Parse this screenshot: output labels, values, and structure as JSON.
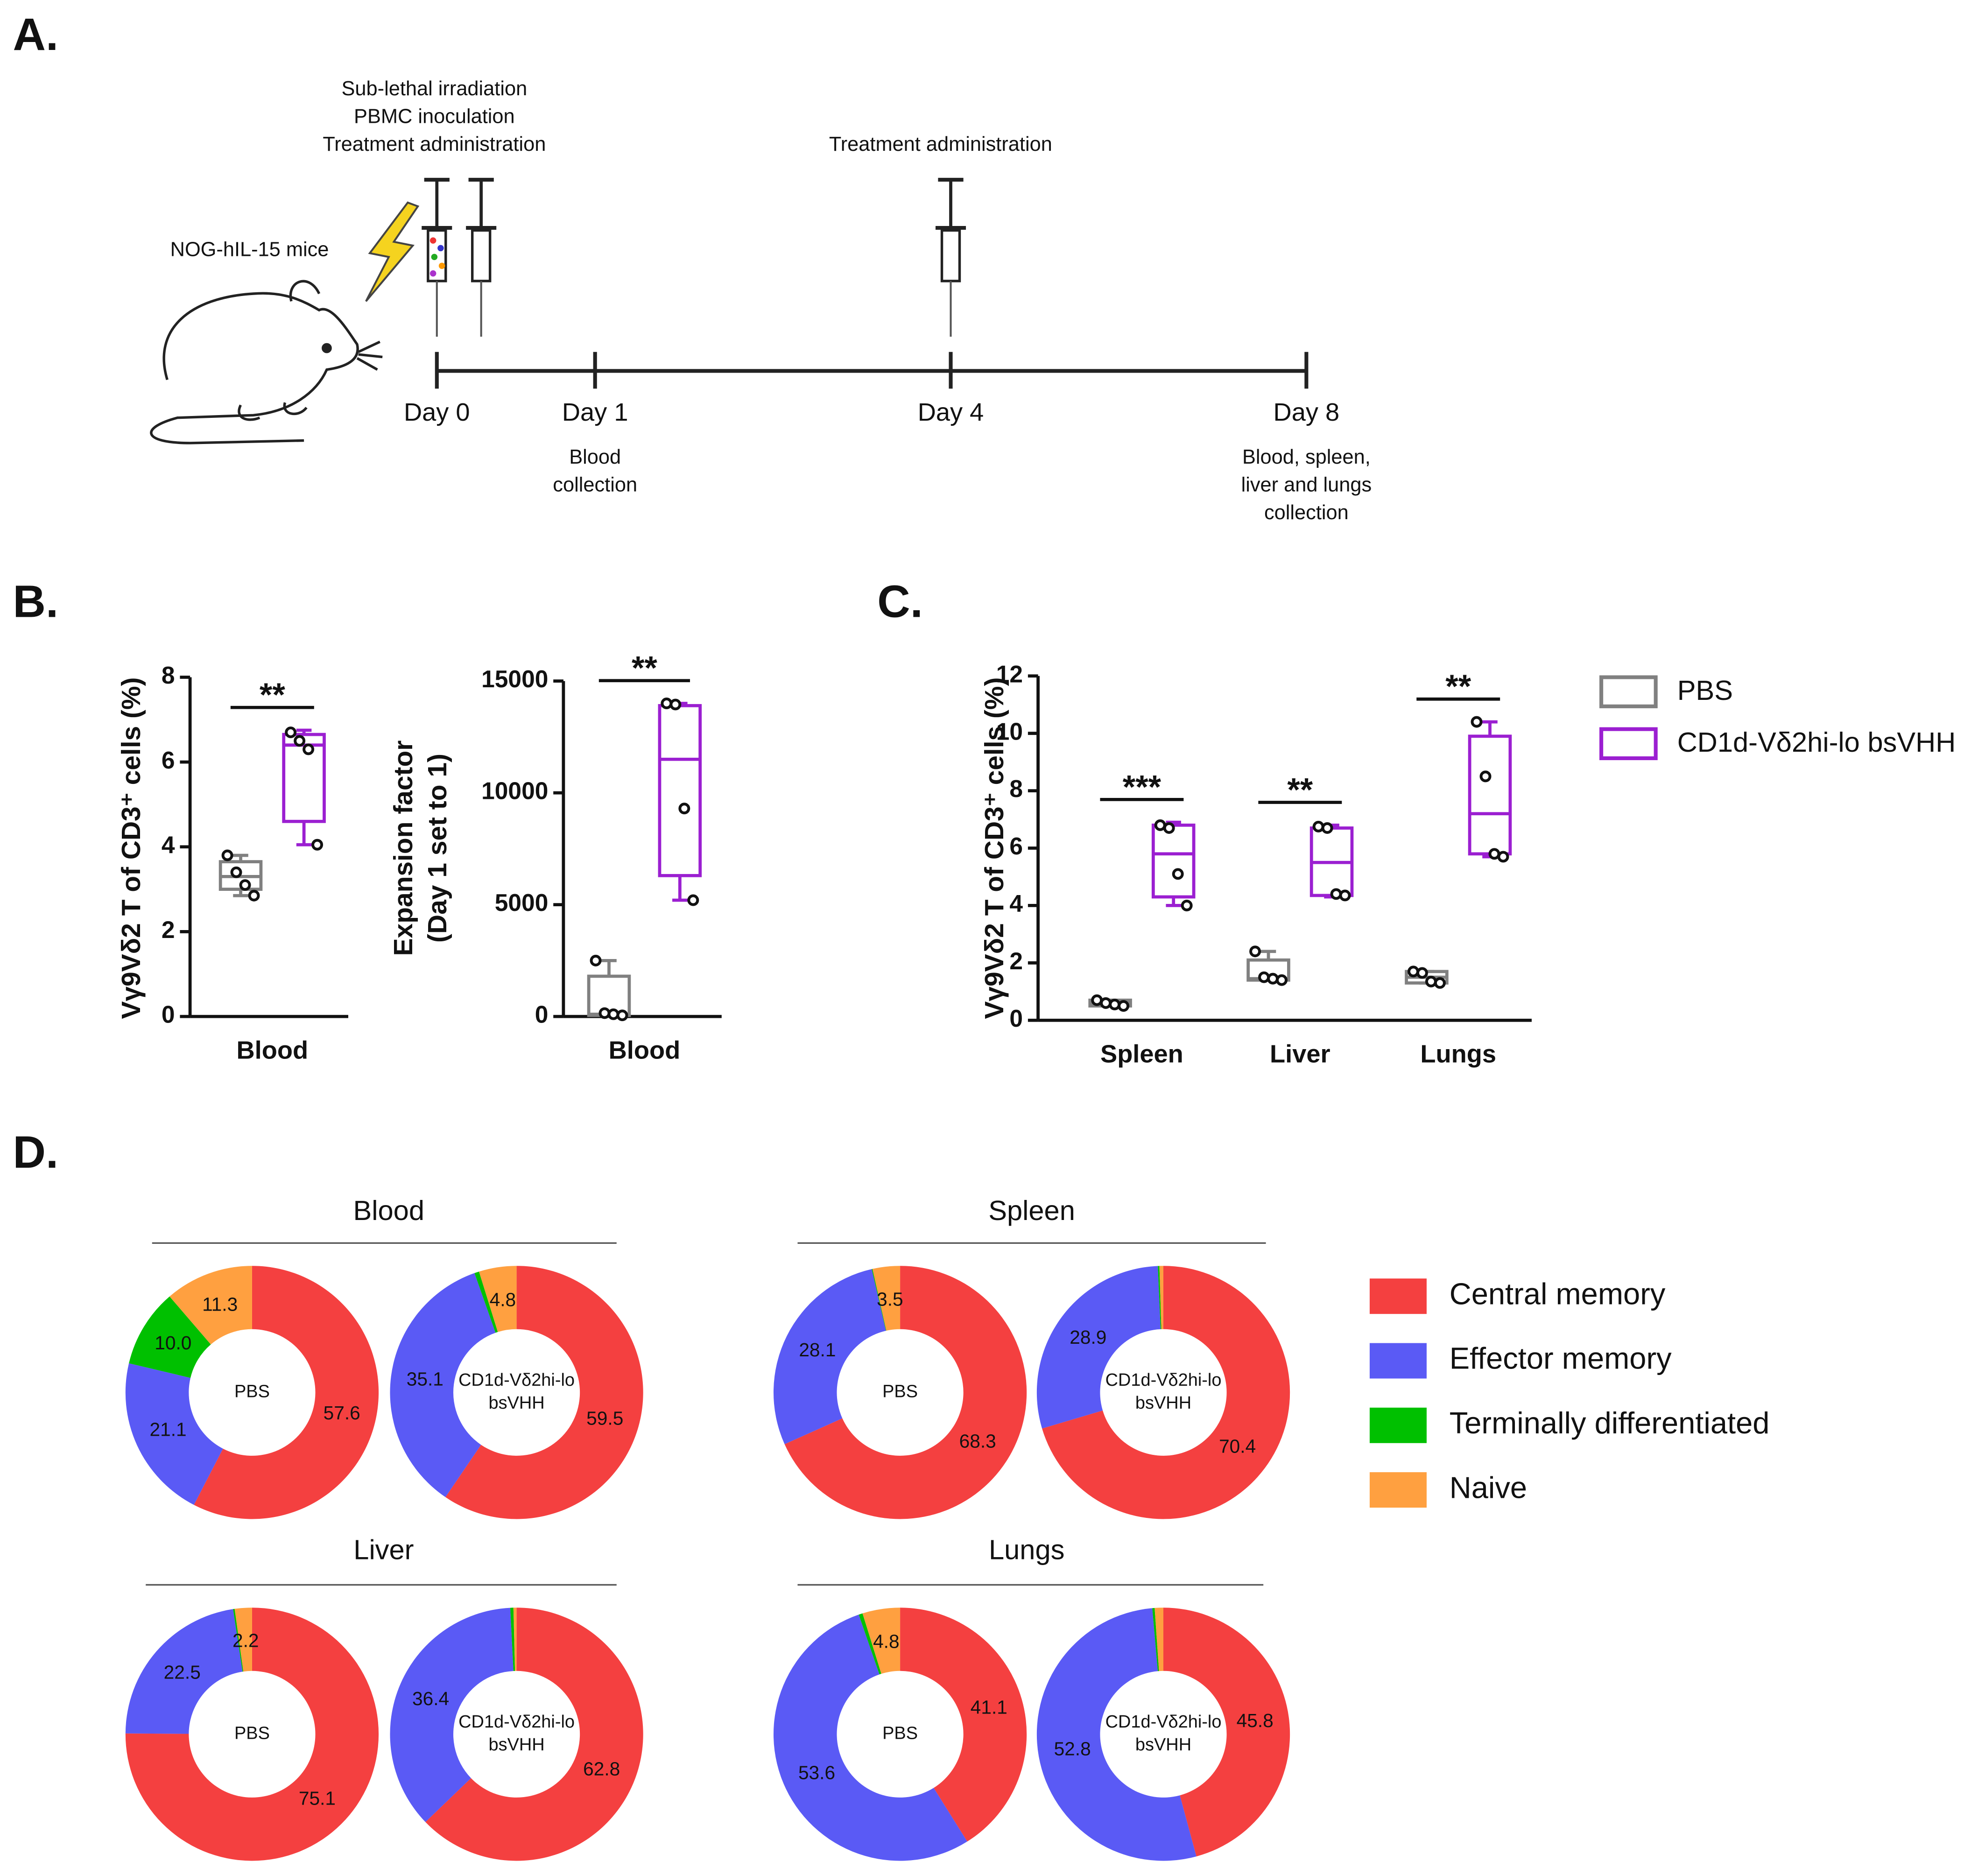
{
  "panels": [
    "A.",
    "B.",
    "C.",
    "D."
  ],
  "timeline": {
    "subject": "NOG-hIL-15 mice",
    "days": [
      {
        "label": "Day 0",
        "above": [
          "Sub-lethal irradiation",
          "PBMC inoculation",
          "Treatment administration"
        ]
      },
      {
        "label": "Day 1",
        "below": [
          "Blood",
          "collection"
        ]
      },
      {
        "label": "Day 4",
        "above": [
          "Treatment  administration"
        ]
      },
      {
        "label": "Day 8",
        "below": [
          "Blood, spleen,",
          "liver and lungs",
          "collection"
        ]
      }
    ]
  },
  "chart_data": [
    {
      "type": "box",
      "ylabel": "Vγ9Vδ2 T of CD3⁺ cells (%)",
      "categories": [
        "Blood"
      ],
      "ylim": [
        0,
        8
      ],
      "yticks": [
        0,
        2,
        4,
        6,
        8
      ],
      "significance": [
        "**"
      ],
      "series": [
        {
          "color": "#808080",
          "boxes": [
            {
              "min": 2.85,
              "q1": 3.0,
              "median": 3.3,
              "q3": 3.65,
              "max": 3.8,
              "points": [
                3.8,
                3.4,
                3.1,
                2.85
              ]
            }
          ]
        },
        {
          "color": "#9b1fd1",
          "boxes": [
            {
              "min": 4.05,
              "q1": 4.6,
              "median": 6.4,
              "q3": 6.65,
              "max": 6.75,
              "points": [
                6.7,
                6.5,
                6.3,
                4.05
              ]
            }
          ]
        }
      ]
    },
    {
      "type": "box",
      "ylabel": [
        "Expansion factor",
        "(Day 1 set to 1)"
      ],
      "categories": [
        "Blood"
      ],
      "ylim": [
        0,
        15000
      ],
      "yticks": [
        0,
        5000,
        10000,
        15000
      ],
      "significance": [
        "**"
      ],
      "series": [
        {
          "color": "#808080",
          "boxes": [
            {
              "min": 0,
              "q1": 50,
              "median": 100,
              "q3": 1800,
              "max": 2500,
              "points": [
                2500,
                150,
                100,
                50
              ]
            }
          ]
        },
        {
          "color": "#9b1fd1",
          "boxes": [
            {
              "min": 5200,
              "q1": 6300,
              "median": 11500,
              "q3": 13900,
              "max": 14000,
              "points": [
                14000,
                13950,
                9300,
                5200
              ]
            }
          ]
        }
      ]
    },
    {
      "type": "box",
      "ylabel": "Vγ9Vδ2 T of CD3⁺ cells (%)",
      "categories": [
        "Spleen",
        "Liver",
        "Lungs"
      ],
      "ylim": [
        0,
        12
      ],
      "yticks": [
        0,
        2,
        4,
        6,
        8,
        10,
        12
      ],
      "significance": [
        "***",
        "**",
        "**"
      ],
      "series": [
        {
          "name": "PBS",
          "color": "#808080",
          "boxes": [
            {
              "min": 0.5,
              "q1": 0.5,
              "median": 0.6,
              "q3": 0.7,
              "max": 0.7,
              "points": [
                0.7,
                0.6,
                0.55,
                0.5
              ]
            },
            {
              "min": 1.4,
              "q1": 1.4,
              "median": 1.45,
              "q3": 2.1,
              "max": 2.4,
              "points": [
                2.4,
                1.5,
                1.45,
                1.4
              ]
            },
            {
              "min": 1.3,
              "q1": 1.3,
              "median": 1.5,
              "q3": 1.7,
              "max": 1.7,
              "points": [
                1.7,
                1.65,
                1.35,
                1.3
              ]
            }
          ]
        },
        {
          "name": "CD1d-Vδ2hi-lo bsVHH",
          "color": "#9b1fd1",
          "boxes": [
            {
              "min": 4.0,
              "q1": 4.3,
              "median": 5.8,
              "q3": 6.8,
              "max": 6.9,
              "points": [
                6.8,
                6.7,
                5.1,
                4.0
              ]
            },
            {
              "min": 4.3,
              "q1": 4.35,
              "median": 5.5,
              "q3": 6.7,
              "max": 6.8,
              "points": [
                6.75,
                6.7,
                4.4,
                4.35
              ]
            },
            {
              "min": 5.7,
              "q1": 5.8,
              "median": 7.2,
              "q3": 9.9,
              "max": 10.4,
              "points": [
                10.4,
                8.5,
                5.8,
                5.7
              ]
            }
          ]
        }
      ]
    },
    {
      "type": "donut",
      "categories": [
        "Central memory",
        "Effector memory",
        "Terminally differentiated",
        "Naive"
      ],
      "colors": [
        "#f44040",
        "#5a5af5",
        "#00c000",
        "#ffa040"
      ],
      "groups": [
        {
          "title": "Blood",
          "donuts": [
            {
              "label": [
                "PBS"
              ],
              "values": [
                57.6,
                21.1,
                10.0,
                11.3
              ],
              "value_labels": [
                "57.6",
                "21.1",
                "10.0",
                "11.3"
              ]
            },
            {
              "label": [
                "CD1d-Vδ2hi-lo",
                "bsVHH"
              ],
              "values": [
                59.5,
                35.1,
                0.6,
                4.8
              ],
              "value_labels": [
                "59.5",
                "35.1",
                null,
                "4.8"
              ]
            }
          ]
        },
        {
          "title": "Spleen",
          "donuts": [
            {
              "label": [
                "PBS"
              ],
              "values": [
                68.3,
                28.1,
                0.1,
                3.5
              ],
              "value_labels": [
                "68.3",
                "28.1",
                null,
                "3.5"
              ]
            },
            {
              "label": [
                "CD1d-Vδ2hi-lo",
                "bsVHH"
              ],
              "values": [
                70.4,
                28.9,
                0.2,
                0.5
              ],
              "value_labels": [
                "70.4",
                "28.9",
                null,
                null
              ]
            }
          ]
        },
        {
          "title": "Liver",
          "donuts": [
            {
              "label": [
                "PBS"
              ],
              "values": [
                75.1,
                22.5,
                0.2,
                2.2
              ],
              "value_labels": [
                "75.1",
                "22.5",
                null,
                "2.2"
              ]
            },
            {
              "label": [
                "CD1d-Vδ2hi-lo",
                "bsVHH"
              ],
              "values": [
                62.8,
                36.4,
                0.4,
                0.4
              ],
              "value_labels": [
                "62.8",
                "36.4",
                null,
                null
              ]
            }
          ]
        },
        {
          "title": "Lungs",
          "donuts": [
            {
              "label": [
                "PBS"
              ],
              "values": [
                41.1,
                53.6,
                0.5,
                4.8
              ],
              "value_labels": [
                "41.1",
                "53.6",
                null,
                "4.8"
              ]
            },
            {
              "label": [
                "CD1d-Vδ2hi-lo",
                "bsVHH"
              ],
              "values": [
                45.8,
                52.8,
                0.3,
                1.1
              ],
              "value_labels": [
                "45.8",
                "52.8",
                null,
                null
              ]
            }
          ]
        }
      ]
    }
  ]
}
